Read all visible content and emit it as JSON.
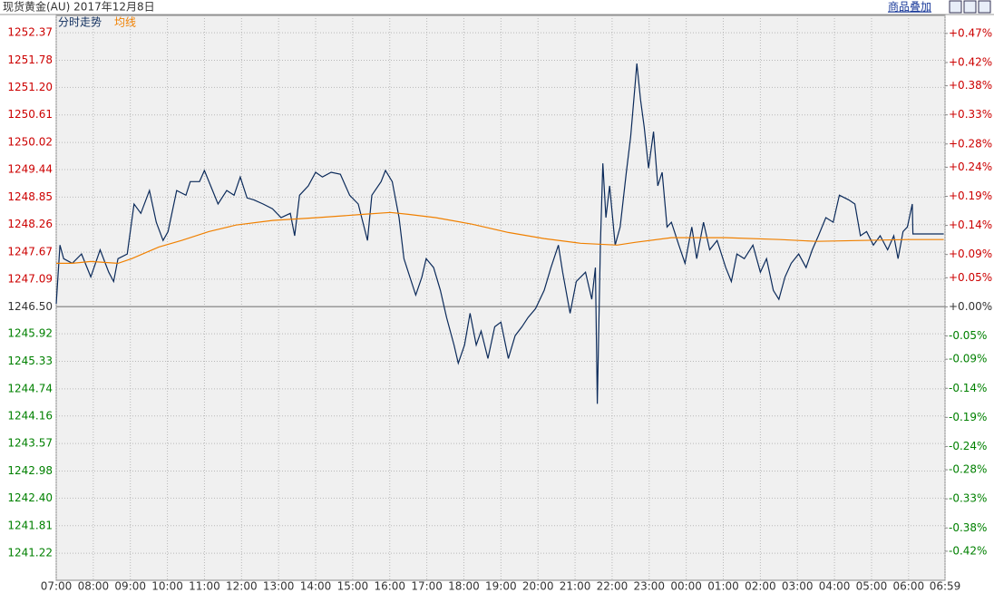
{
  "toolbar": {
    "button": "商品叠加"
  },
  "chart_data": {
    "type": "line",
    "title": "现货黄金(AU) 2017年12月8日",
    "baseline": {
      "value": 1246.5,
      "label": "1246.50"
    },
    "up_color": "#cc0000",
    "down_color": "#008000",
    "grid": true,
    "xlim": [
      0,
      1439
    ],
    "xticks": [
      {
        "value": 0,
        "label": "07:00"
      },
      {
        "value": 60,
        "label": "08:00"
      },
      {
        "value": 120,
        "label": "09:00"
      },
      {
        "value": 180,
        "label": "10:00"
      },
      {
        "value": 240,
        "label": "11:00"
      },
      {
        "value": 300,
        "label": "12:00"
      },
      {
        "value": 360,
        "label": "13:00"
      },
      {
        "value": 420,
        "label": "14:00"
      },
      {
        "value": 480,
        "label": "15:00"
      },
      {
        "value": 540,
        "label": "16:00"
      },
      {
        "value": 600,
        "label": "17:00"
      },
      {
        "value": 660,
        "label": "18:00"
      },
      {
        "value": 720,
        "label": "19:00"
      },
      {
        "value": 780,
        "label": "20:00"
      },
      {
        "value": 840,
        "label": "21:00"
      },
      {
        "value": 900,
        "label": "22:00"
      },
      {
        "value": 960,
        "label": "23:00"
      },
      {
        "value": 1020,
        "label": "00:00"
      },
      {
        "value": 1080,
        "label": "01:00"
      },
      {
        "value": 1140,
        "label": "02:00"
      },
      {
        "value": 1200,
        "label": "03:00"
      },
      {
        "value": 1260,
        "label": "04:00"
      },
      {
        "value": 1320,
        "label": "05:00"
      },
      {
        "value": 1380,
        "label": "06:00"
      },
      {
        "value": 1439,
        "label": "06:59"
      }
    ],
    "ylim": [
      1240.64,
      1252.43
    ],
    "yticks": [
      1252.37,
      1251.78,
      {
        "value": 1251.2,
        "label": "1251.20"
      },
      1250.61,
      1250.02,
      1249.44,
      1248.85,
      1248.26,
      1247.67,
      1247.09,
      {
        "value": 1246.5,
        "label": "1246.50"
      },
      1245.92,
      1245.33,
      1244.74,
      1244.16,
      1243.57,
      1242.98,
      {
        "value": 1242.4,
        "label": "1242.40"
      },
      1241.81,
      1241.22
    ],
    "y2lim": [
      -0.47,
      0.476
    ],
    "y2ticks": [
      {
        "value": 0.47,
        "label": "+0.47%"
      },
      {
        "value": 0.42,
        "label": "+0.42%"
      },
      {
        "value": 0.38,
        "label": "+0.38%"
      },
      {
        "value": 0.33,
        "label": "+0.33%"
      },
      {
        "value": 0.28,
        "label": "+0.28%"
      },
      {
        "value": 0.24,
        "label": "+0.24%"
      },
      {
        "value": 0.19,
        "label": "+0.19%"
      },
      {
        "value": 0.14,
        "label": "+0.14%"
      },
      {
        "value": 0.09,
        "label": "+0.09%"
      },
      {
        "value": 0.05,
        "label": "+0.05%"
      },
      {
        "value": 0,
        "label": "+0.00%"
      },
      {
        "value": -0.05,
        "label": "-0.05%"
      },
      {
        "value": -0.09,
        "label": "-0.09%"
      },
      {
        "value": -0.14,
        "label": "-0.14%"
      },
      {
        "value": -0.19,
        "label": "-0.19%"
      },
      {
        "value": -0.24,
        "label": "-0.24%"
      },
      {
        "value": -0.28,
        "label": "-0.28%"
      },
      {
        "value": -0.33,
        "label": "-0.33%"
      },
      {
        "value": -0.38,
        "label": "-0.38%"
      },
      {
        "value": -0.42,
        "label": "-0.42%"
      }
    ],
    "series": [
      {
        "name": "分时走势",
        "color": "#0b2a5a",
        "x": [
          0,
          6,
          12,
          26,
          41,
          56,
          71,
          85,
          93,
          100,
          115,
          126,
          137,
          151,
          162,
          173,
          181,
          195,
          210,
          217,
          232,
          240,
          250,
          262,
          276,
          288,
          298,
          309,
          320,
          335,
          350,
          364,
          379,
          386,
          394,
          408,
          420,
          431,
          445,
          460,
          475,
          489,
          504,
          511,
          526,
          533,
          544,
          555,
          563,
          570,
          582,
          592,
          599,
          611,
          622,
          632,
          644,
          651,
          661,
          670,
          680,
          688,
          699,
          710,
          720,
          732,
          743,
          754,
          764,
          776,
          790,
          801,
          813,
          820,
          832,
          842,
          857,
          867,
          873,
          876,
          881,
          885,
          890,
          896,
          905,
          913,
          923,
          930,
          937,
          940,
          946,
          952,
          959,
          967,
          974,
          981,
          989,
          996,
          1008,
          1018,
          1029,
          1037,
          1048,
          1058,
          1070,
          1084,
          1093,
          1102,
          1114,
          1128,
          1140,
          1150,
          1161,
          1170,
          1180,
          1190,
          1202,
          1214,
          1224,
          1234,
          1246,
          1258,
          1268,
          1283,
          1293,
          1302,
          1312,
          1323,
          1334,
          1346,
          1356,
          1363,
          1371,
          1378,
          1386,
          1387,
          1437
        ],
        "values": [
          1246.56,
          1247.82,
          1247.53,
          1247.43,
          1247.63,
          1247.14,
          1247.72,
          1247.24,
          1247.04,
          1247.53,
          1247.63,
          1248.7,
          1248.5,
          1248.99,
          1248.31,
          1247.92,
          1248.11,
          1248.99,
          1248.89,
          1249.18,
          1249.18,
          1249.42,
          1249.09,
          1248.7,
          1248.99,
          1248.89,
          1249.28,
          1248.83,
          1248.79,
          1248.7,
          1248.6,
          1248.41,
          1248.5,
          1248.02,
          1248.89,
          1249.09,
          1249.38,
          1249.28,
          1249.38,
          1249.34,
          1248.89,
          1248.7,
          1247.92,
          1248.89,
          1249.18,
          1249.42,
          1249.18,
          1248.41,
          1247.53,
          1247.24,
          1246.75,
          1247.14,
          1247.53,
          1247.34,
          1246.85,
          1246.27,
          1245.68,
          1245.29,
          1245.68,
          1246.36,
          1245.68,
          1245.98,
          1245.39,
          1246.07,
          1246.17,
          1245.39,
          1245.88,
          1246.07,
          1246.27,
          1246.46,
          1246.85,
          1247.34,
          1247.82,
          1247.24,
          1246.36,
          1247.04,
          1247.24,
          1246.66,
          1247.34,
          1244.42,
          1247.82,
          1249.57,
          1248.41,
          1249.09,
          1247.82,
          1248.21,
          1249.38,
          1250.15,
          1251.22,
          1251.71,
          1250.93,
          1250.35,
          1249.47,
          1250.25,
          1249.09,
          1249.38,
          1248.21,
          1248.31,
          1247.82,
          1247.43,
          1248.21,
          1247.53,
          1248.31,
          1247.72,
          1247.92,
          1247.34,
          1247.04,
          1247.63,
          1247.53,
          1247.82,
          1247.24,
          1247.53,
          1246.85,
          1246.66,
          1247.14,
          1247.43,
          1247.63,
          1247.34,
          1247.72,
          1248.02,
          1248.41,
          1248.31,
          1248.89,
          1248.79,
          1248.7,
          1248.02,
          1248.11,
          1247.82,
          1248.02,
          1247.72,
          1248.02,
          1247.53,
          1248.11,
          1248.21,
          1248.7,
          1248.06,
          1248.06
        ]
      },
      {
        "name": "均线",
        "color": "#f08000",
        "x": [
          0,
          26,
          56,
          100,
          122,
          166,
          203,
          247,
          291,
          350,
          423,
          497,
          541,
          570,
          614,
          673,
          732,
          790,
          849,
          908,
          937,
          996,
          1084,
          1172,
          1231,
          1305,
          1378,
          1437
        ],
        "values": [
          1247.43,
          1247.43,
          1247.47,
          1247.43,
          1247.53,
          1247.78,
          1247.92,
          1248.11,
          1248.25,
          1248.35,
          1248.41,
          1248.48,
          1248.52,
          1248.48,
          1248.41,
          1248.27,
          1248.09,
          1247.96,
          1247.86,
          1247.82,
          1247.88,
          1247.98,
          1247.98,
          1247.94,
          1247.9,
          1247.92,
          1247.94,
          1247.94
        ]
      }
    ]
  }
}
